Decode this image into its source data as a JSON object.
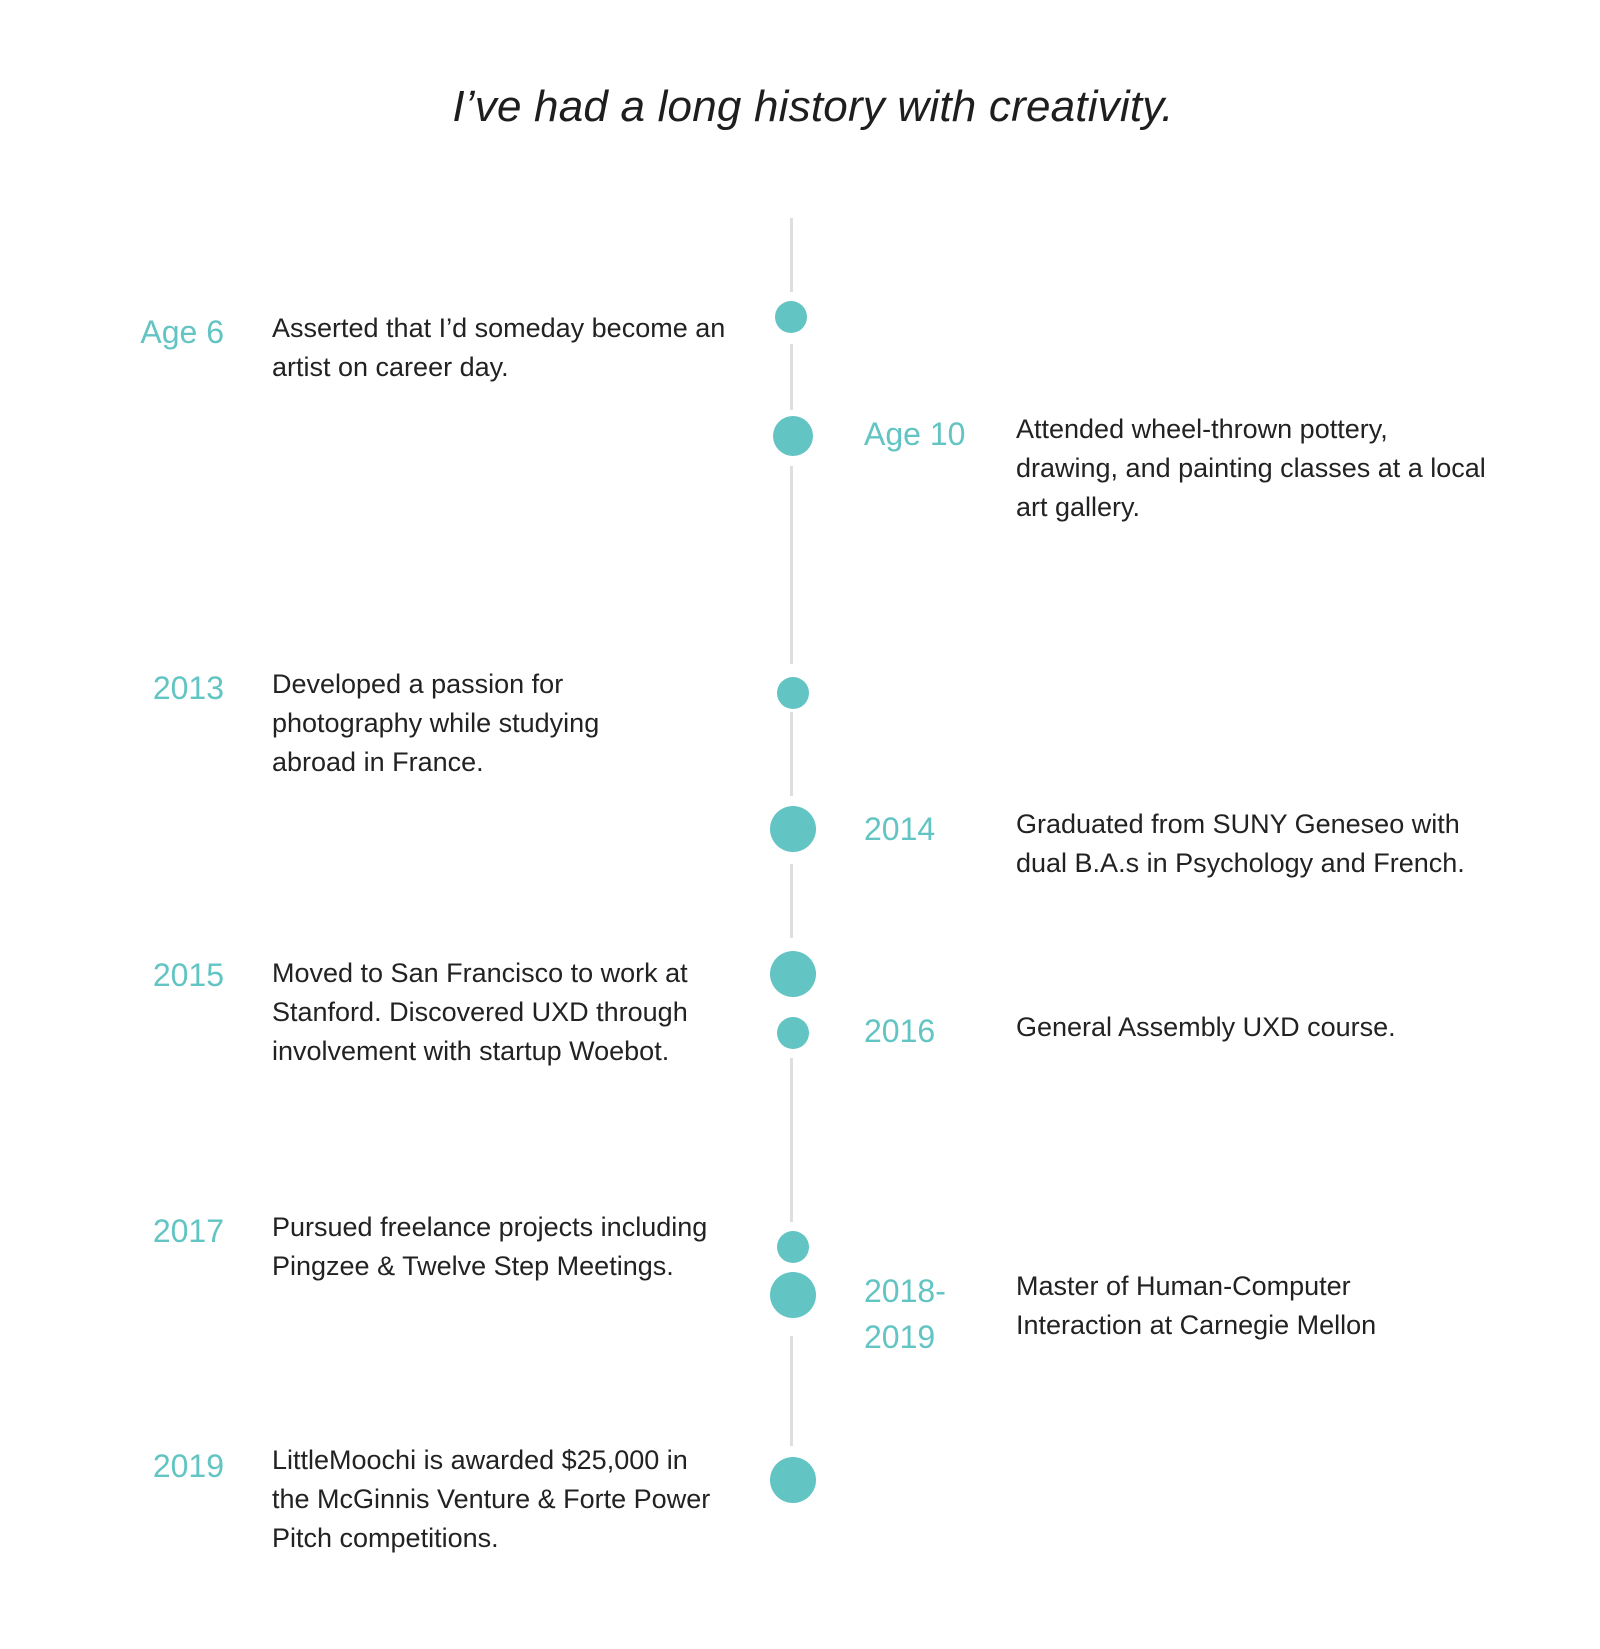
{
  "title": "I’ve had a long history with creativity.",
  "timeline": {
    "accent_color": "#62c4c3",
    "line_color": "#dedede",
    "events": [
      {
        "label": "Age 6",
        "text": "Asserted that I’d someday become an artist on career day."
      },
      {
        "label": "Age 10",
        "text": "Attended wheel-thrown pottery, drawing, and painting classes at a local art gallery."
      },
      {
        "label": "2013",
        "text": "Developed a passion for photography while studying abroad in France."
      },
      {
        "label": "2014",
        "text": "Graduated from SUNY Geneseo with dual B.A.s in Psychology and French."
      },
      {
        "label": "2015",
        "text": "Moved to San Francisco to work at Stanford. Discovered UXD through involvement with startup Woebot."
      },
      {
        "label": "2016",
        "text": "General Assembly UXD course."
      },
      {
        "label": "2017",
        "text": "Pursued freelance projects including Pingzee & Twelve Step Meetings."
      },
      {
        "label": "2018-2019",
        "text": "Master of Human-Computer Interaction at Carnegie Mellon"
      },
      {
        "label": "2019",
        "text": "LittleMoochi is awarded $25,000 in the McGinnis Venture & Forte Power Pitch competitions."
      }
    ]
  }
}
